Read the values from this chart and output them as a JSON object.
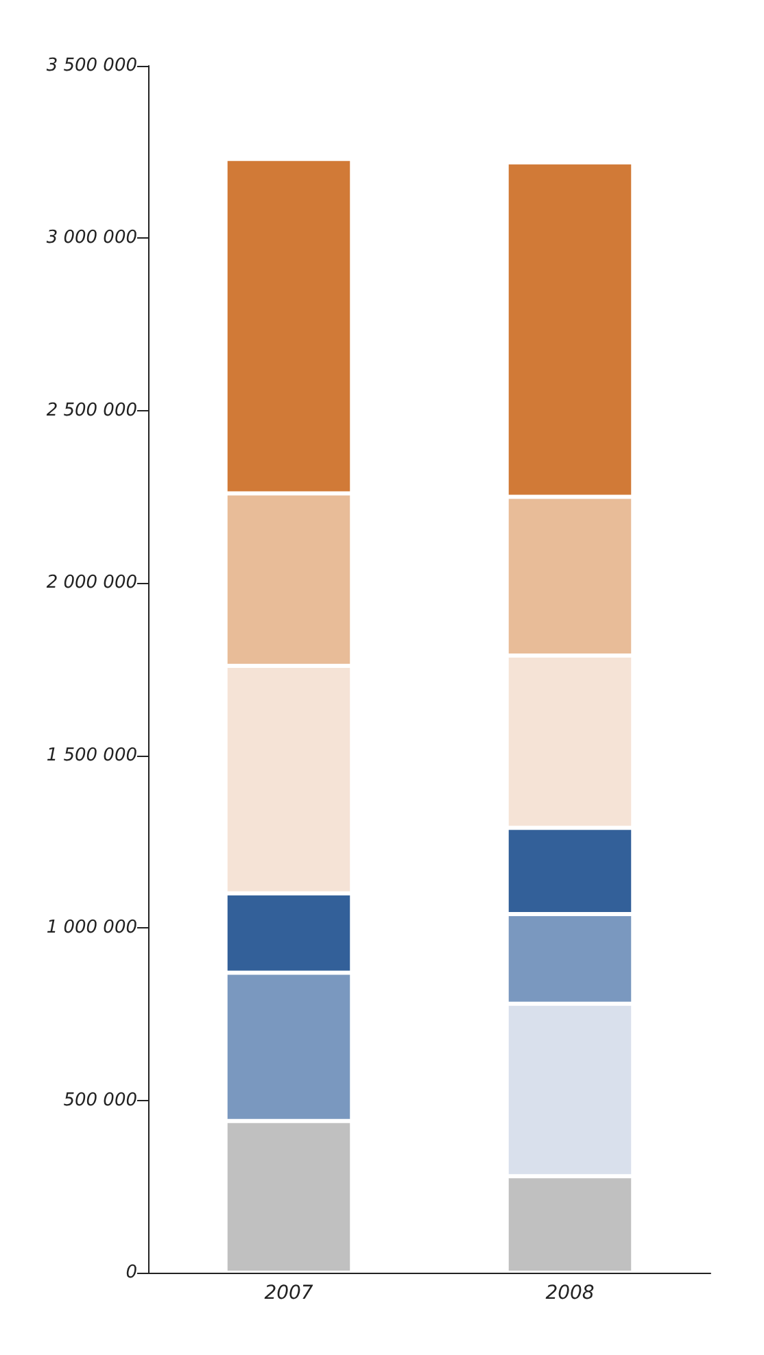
{
  "chart_data": {
    "type": "bar",
    "stacked": true,
    "categories": [
      "2007",
      "2008"
    ],
    "series": [
      {
        "color": "#c0c0c0",
        "values": [
          440000,
          280000
        ]
      },
      {
        "color": "#d9e0ec",
        "values": [
          null,
          500000
        ]
      },
      {
        "color": "#7a98bf",
        "values": [
          430000,
          260000
        ]
      },
      {
        "color": "#336099",
        "values": [
          230000,
          250000
        ]
      },
      {
        "color": "#f5e3d6",
        "values": [
          660000,
          500000
        ]
      },
      {
        "color": "#e8bc98",
        "values": [
          500000,
          460000
        ]
      },
      {
        "color": "#d17a37",
        "values": [
          970000,
          970000
        ]
      }
    ],
    "ylim": [
      0,
      3500000
    ],
    "yticks": [
      {
        "value": 0,
        "label": "0"
      },
      {
        "value": 500000,
        "label": "500 000"
      },
      {
        "value": 1000000,
        "label": "1 000 000"
      },
      {
        "value": 1500000,
        "label": "1 500 000"
      },
      {
        "value": 2000000,
        "label": "2 000 000"
      },
      {
        "value": 2500000,
        "label": "2 500 000"
      },
      {
        "value": 3000000,
        "label": "3 000 000"
      },
      {
        "value": 3500000,
        "label": "3 500 000"
      }
    ],
    "grid": false
  }
}
